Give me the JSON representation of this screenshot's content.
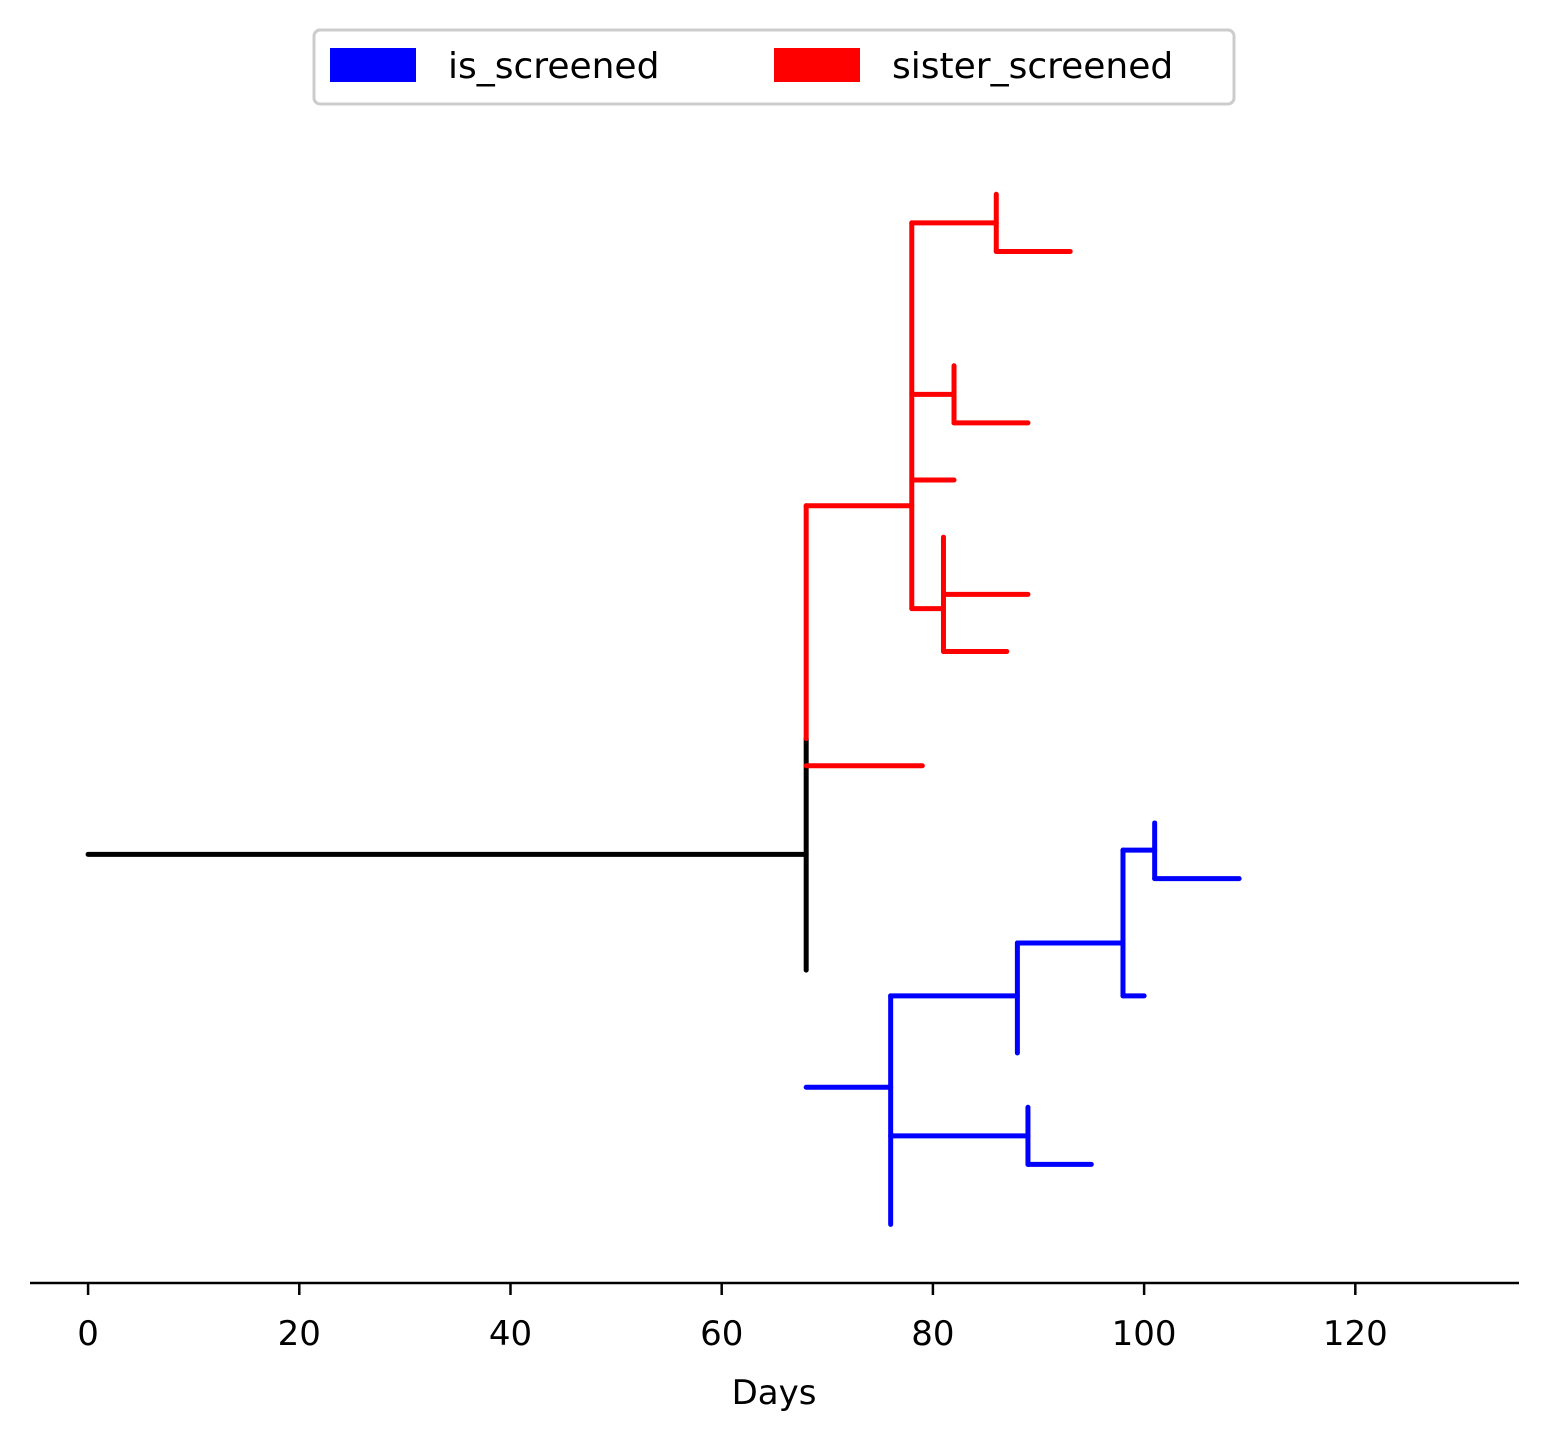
{
  "chart_data": {
    "type": "line",
    "subtype": "phylogenetic-tree",
    "title": "",
    "xlabel": "Days",
    "ylabel": "",
    "xlim": [
      -5.5,
      135.5
    ],
    "x_ticks": [
      0,
      20,
      40,
      60,
      80,
      100,
      120
    ],
    "grid": false,
    "legend": {
      "placement": "top-center",
      "entries": [
        {
          "label": "is_screened",
          "color": "#0000ff"
        },
        {
          "label": "sister_screened",
          "color": "#ff0000"
        }
      ]
    },
    "colors": {
      "root": "#000000",
      "is_screened": "#0000ff",
      "sister_screened": "#ff0000"
    },
    "branches": [
      {
        "group": "root",
        "orient": "h",
        "y": 0.0,
        "x0": 0,
        "x1": 68
      },
      {
        "group": "root",
        "orient": "v",
        "x": 68,
        "y0": 8.1,
        "y1": -8.1
      },
      {
        "group": "sister_screened",
        "orient": "v",
        "x": 68,
        "y0": 8.1,
        "y1": 24.4
      },
      {
        "group": "sister_screened",
        "orient": "h",
        "y": 6.2,
        "x0": 68,
        "x1": 79
      },
      {
        "group": "sister_screened",
        "orient": "h",
        "y": 24.4,
        "x0": 68,
        "x1": 78
      },
      {
        "group": "sister_screened",
        "orient": "v",
        "x": 78,
        "y0": 17.2,
        "y1": 44.2
      },
      {
        "group": "sister_screened",
        "orient": "h",
        "y": 44.2,
        "x0": 78,
        "x1": 86
      },
      {
        "group": "sister_screened",
        "orient": "v",
        "x": 86,
        "y0": 42.2,
        "y1": 46.2
      },
      {
        "group": "sister_screened",
        "orient": "h",
        "y": 42.2,
        "x0": 86,
        "x1": 93
      },
      {
        "group": "sister_screened",
        "orient": "h",
        "y": 32.2,
        "x0": 78,
        "x1": 82
      },
      {
        "group": "sister_screened",
        "orient": "v",
        "x": 82,
        "y0": 30.2,
        "y1": 34.2
      },
      {
        "group": "sister_screened",
        "orient": "h",
        "y": 30.2,
        "x0": 82,
        "x1": 89
      },
      {
        "group": "sister_screened",
        "orient": "h",
        "y": 26.2,
        "x0": 78,
        "x1": 82
      },
      {
        "group": "sister_screened",
        "orient": "h",
        "y": 17.2,
        "x0": 78,
        "x1": 81
      },
      {
        "group": "sister_screened",
        "orient": "v",
        "x": 81,
        "y0": 14.2,
        "y1": 22.2
      },
      {
        "group": "sister_screened",
        "orient": "h",
        "y": 18.2,
        "x0": 81,
        "x1": 89
      },
      {
        "group": "sister_screened",
        "orient": "h",
        "y": 14.2,
        "x0": 81,
        "x1": 87
      },
      {
        "group": "is_screened",
        "orient": "h",
        "y": -16.3,
        "x0": 68,
        "x1": 76
      },
      {
        "group": "is_screened",
        "orient": "v",
        "x": 76,
        "y0": -9.9,
        "y1": -25.9
      },
      {
        "group": "is_screened",
        "orient": "h",
        "y": -9.9,
        "x0": 76,
        "x1": 88
      },
      {
        "group": "is_screened",
        "orient": "v",
        "x": 88,
        "y0": -6.2,
        "y1": -13.9
      },
      {
        "group": "is_screened",
        "orient": "h",
        "y": -6.2,
        "x0": 88,
        "x1": 98
      },
      {
        "group": "is_screened",
        "orient": "v",
        "x": 98,
        "y0": 0.3,
        "y1": -9.9
      },
      {
        "group": "is_screened",
        "orient": "h",
        "y": 0.3,
        "x0": 98,
        "x1": 101
      },
      {
        "group": "is_screened",
        "orient": "v",
        "x": 101,
        "y0": 2.2,
        "y1": -1.7
      },
      {
        "group": "is_screened",
        "orient": "h",
        "y": -1.7,
        "x0": 101,
        "x1": 109
      },
      {
        "group": "is_screened",
        "orient": "h",
        "y": -9.9,
        "x0": 98,
        "x1": 100
      },
      {
        "group": "is_screened",
        "orient": "h",
        "y": -19.7,
        "x0": 76,
        "x1": 89
      },
      {
        "group": "is_screened",
        "orient": "v",
        "x": 89,
        "y0": -17.7,
        "y1": -21.7
      },
      {
        "group": "is_screened",
        "orient": "h",
        "y": -21.7,
        "x0": 89,
        "x1": 95
      }
    ]
  }
}
